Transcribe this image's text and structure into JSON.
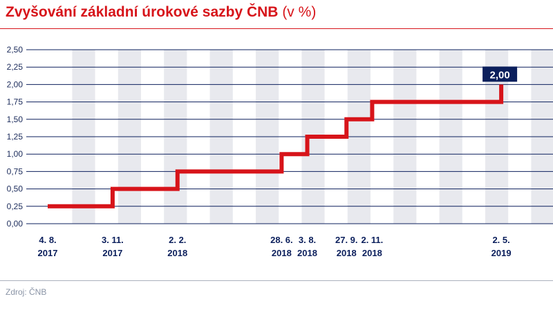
{
  "header": {
    "title": "Zvyšování základní úrokové sazby ČNB",
    "unit": "(v %)"
  },
  "footer": {
    "source": "Zdroj: ČNB"
  },
  "colors": {
    "line": "#d7141a",
    "title": "#d7141a",
    "stripe": "#e8e9ee",
    "axis_text": "#0b1f5c",
    "callout_bg": "#0b1f5c"
  },
  "chart_data": {
    "type": "line",
    "step": true,
    "ylim": [
      0,
      2.5
    ],
    "yticks": [
      "0,00",
      "0,25",
      "0,50",
      "0,75",
      "1,00",
      "1,25",
      "1,50",
      "1,75",
      "2,00",
      "2,25",
      "2,50"
    ],
    "grid": true,
    "x": [
      "2017-08-04",
      "2017-11-03",
      "2018-02-02",
      "2018-06-28",
      "2018-08-03",
      "2018-09-27",
      "2018-11-02",
      "2019-05-02"
    ],
    "x_labels": [
      {
        "day": "4. 8.",
        "year": "2017"
      },
      {
        "day": "3. 11.",
        "year": "2017"
      },
      {
        "day": "2. 2.",
        "year": "2018"
      },
      {
        "day": "28. 6.",
        "year": "2018"
      },
      {
        "day": "3. 8.",
        "year": "2018"
      },
      {
        "day": "27. 9.",
        "year": "2018"
      },
      {
        "day": "2. 11.",
        "year": "2018"
      },
      {
        "day": "2. 5.",
        "year": "2019"
      }
    ],
    "series": [
      {
        "values": [
          0.25,
          0.5,
          0.75,
          1.0,
          1.25,
          1.5,
          1.75,
          2.0
        ]
      }
    ],
    "annotation": {
      "value": "2,00"
    }
  }
}
